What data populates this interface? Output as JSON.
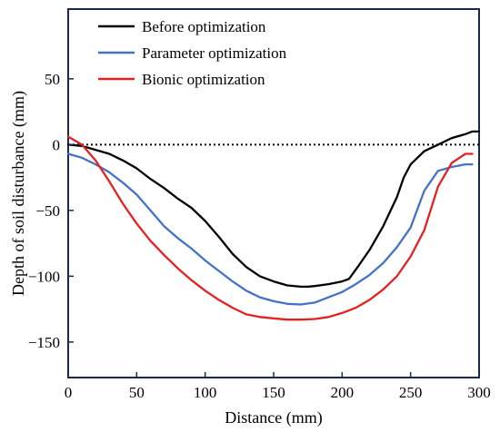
{
  "chart_data": {
    "type": "line",
    "xlabel": "Distance (mm)",
    "ylabel": "Depth of soil disturbance (mm)",
    "xlim": [
      0,
      300
    ],
    "ylim": [
      -177,
      103
    ],
    "x_ticks": [
      "0",
      "50",
      "100",
      "150",
      "200",
      "250",
      "300"
    ],
    "y_ticks": [
      "50",
      "0",
      "−50",
      "−100",
      "−150"
    ],
    "legend_position": "top-left",
    "zero_reference_line": "dotted",
    "grid": false,
    "series": [
      {
        "name": "Before optimization",
        "color": "#000000",
        "x": [
          0,
          10,
          20,
          30,
          40,
          50,
          60,
          70,
          80,
          90,
          100,
          110,
          120,
          130,
          140,
          150,
          160,
          170,
          175,
          180,
          190,
          200,
          205,
          210,
          220,
          230,
          240,
          245,
          250,
          260,
          270,
          280,
          290,
          295,
          300
        ],
        "y": [
          0,
          -1,
          -4,
          -7,
          -12,
          -18,
          -26,
          -33,
          -41,
          -48,
          -58,
          -70,
          -83,
          -93,
          -100,
          -104,
          -107,
          -108,
          -108,
          -107.5,
          -106,
          -104,
          -102,
          -95,
          -80,
          -62,
          -40,
          -25,
          -15,
          -5,
          0,
          5,
          8,
          10,
          10
        ]
      },
      {
        "name": "Parameter optimization",
        "color": "#4472c4",
        "x": [
          0,
          10,
          20,
          30,
          40,
          50,
          60,
          70,
          80,
          90,
          100,
          110,
          120,
          130,
          140,
          150,
          160,
          170,
          180,
          190,
          200,
          210,
          220,
          230,
          240,
          250,
          260,
          270,
          280,
          290,
          295
        ],
        "y": [
          -7,
          -10,
          -15,
          -21,
          -29,
          -38,
          -50,
          -62,
          -71,
          -79,
          -88,
          -96,
          -104,
          -111,
          -116,
          -119,
          -121,
          -121.5,
          -120,
          -116,
          -112,
          -106,
          -99,
          -90,
          -78,
          -63,
          -35,
          -20,
          -17,
          -15,
          -15
        ]
      },
      {
        "name": "Bionic optimization",
        "color": "#e32222",
        "x": [
          0,
          10,
          20,
          30,
          40,
          50,
          60,
          70,
          80,
          90,
          100,
          110,
          120,
          130,
          140,
          150,
          160,
          170,
          180,
          190,
          200,
          210,
          220,
          230,
          240,
          250,
          260,
          270,
          280,
          290,
          295
        ],
        "y": [
          6,
          0,
          -12,
          -28,
          -45,
          -60,
          -73,
          -84,
          -94,
          -103,
          -111,
          -118,
          -124,
          -129,
          -131,
          -132,
          -133,
          -133,
          -132.5,
          -131,
          -128,
          -124,
          -118,
          -110,
          -100,
          -85,
          -65,
          -32,
          -14,
          -7,
          -7
        ]
      }
    ]
  }
}
